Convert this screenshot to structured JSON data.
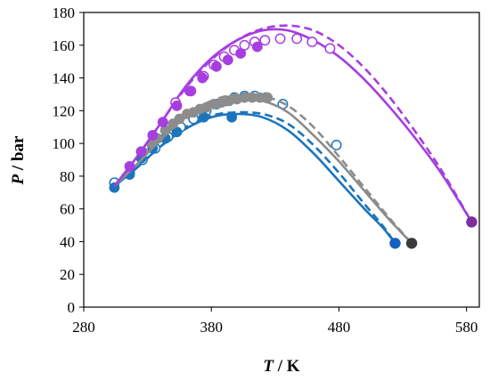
{
  "chart_data": {
    "type": "scatter",
    "title": "",
    "xlabel": {
      "symbol": "T",
      "unit": " / K"
    },
    "ylabel": {
      "symbol": "P",
      "unit": " / bar"
    },
    "xlim": [
      280,
      590
    ],
    "ylim": [
      0,
      180
    ],
    "x_ticks": [
      "280",
      "380",
      "480",
      "580"
    ],
    "x_tick_values": [
      280,
      380,
      480,
      580
    ],
    "y_ticks": [
      "0",
      "20",
      "40",
      "60",
      "80",
      "100",
      "120",
      "140",
      "160",
      "180"
    ],
    "y_tick_values": [
      0,
      20,
      40,
      60,
      80,
      100,
      120,
      140,
      160,
      180
    ],
    "grid": false,
    "legend": "none",
    "series": [
      {
        "color": "#1b75bc",
        "critical_point": [
          524,
          39
        ],
        "critical_color": "#1560c0",
        "filled": [
          [
            304,
            73
          ],
          [
            316,
            81
          ],
          [
            325,
            91
          ],
          [
            334,
            97
          ],
          [
            344,
            103
          ],
          [
            353,
            107
          ],
          [
            374,
            116
          ],
          [
            396,
            116
          ]
        ],
        "open": [
          [
            304,
            76
          ],
          [
            316,
            82
          ],
          [
            326,
            90
          ],
          [
            336,
            97
          ],
          [
            346,
            104
          ],
          [
            356,
            110
          ],
          [
            366,
            115
          ],
          [
            376,
            120
          ],
          [
            384,
            124
          ],
          [
            392,
            126
          ],
          [
            398,
            128
          ],
          [
            406,
            129
          ],
          [
            414,
            129
          ],
          [
            423,
            128
          ],
          [
            436,
            124
          ],
          [
            478,
            99
          ]
        ],
        "solid_line": [
          [
            304,
            74
          ],
          [
            320,
            84
          ],
          [
            340,
            98
          ],
          [
            360,
            109
          ],
          [
            380,
            116
          ],
          [
            400,
            118
          ],
          [
            420,
            116
          ],
          [
            440,
            108
          ],
          [
            460,
            94
          ],
          [
            480,
            77
          ],
          [
            500,
            60
          ],
          [
            515,
            48
          ],
          [
            524,
            39
          ]
        ],
        "dashed_line": [
          [
            304,
            74
          ],
          [
            320,
            84
          ],
          [
            340,
            98
          ],
          [
            360,
            110
          ],
          [
            380,
            117
          ],
          [
            400,
            119
          ],
          [
            420,
            118
          ],
          [
            440,
            112
          ],
          [
            460,
            99
          ],
          [
            480,
            82
          ],
          [
            500,
            63
          ],
          [
            515,
            49
          ],
          [
            524,
            39
          ]
        ]
      },
      {
        "color": "#8c8c8c",
        "critical_point": [
          537,
          39
        ],
        "critical_color": "#3a3a3a",
        "filled": [
          [
            326,
            95
          ],
          [
            333,
            100
          ],
          [
            338,
            103
          ],
          [
            344,
            108
          ],
          [
            350,
            112
          ],
          [
            355,
            115
          ],
          [
            361,
            118
          ],
          [
            366,
            119
          ],
          [
            371,
            121
          ],
          [
            376,
            122
          ],
          [
            382,
            124
          ],
          [
            388,
            125
          ],
          [
            394,
            126
          ],
          [
            400,
            127
          ],
          [
            406,
            128
          ],
          [
            412,
            128
          ],
          [
            418,
            128
          ],
          [
            424,
            128
          ]
        ],
        "open": [],
        "solid_line": [
          [
            304,
            74
          ],
          [
            320,
            86
          ],
          [
            340,
            102
          ],
          [
            360,
            116
          ],
          [
            380,
            124
          ],
          [
            400,
            127
          ],
          [
            420,
            126
          ],
          [
            440,
            119
          ],
          [
            460,
            105
          ],
          [
            480,
            89
          ],
          [
            500,
            71
          ],
          [
            520,
            53
          ],
          [
            537,
            39
          ]
        ],
        "dashed_line": [
          [
            304,
            74
          ],
          [
            320,
            86
          ],
          [
            340,
            102
          ],
          [
            360,
            117
          ],
          [
            380,
            126
          ],
          [
            400,
            130
          ],
          [
            420,
            129
          ],
          [
            440,
            123
          ],
          [
            460,
            110
          ],
          [
            480,
            92
          ],
          [
            500,
            73
          ],
          [
            520,
            54
          ],
          [
            537,
            39
          ]
        ]
      },
      {
        "color": "#a63ee0",
        "critical_point": [
          584,
          52
        ],
        "critical_color": "#7d2fa0",
        "filled": [
          [
            316,
            86
          ],
          [
            325,
            95
          ],
          [
            334,
            105
          ],
          [
            342,
            113
          ],
          [
            353,
            123
          ],
          [
            363,
            132
          ],
          [
            373,
            140
          ],
          [
            384,
            147
          ],
          [
            393,
            151
          ],
          [
            403,
            155
          ],
          [
            416,
            159
          ]
        ],
        "open": [
          [
            352,
            125
          ],
          [
            364,
            132
          ],
          [
            374,
            141
          ],
          [
            382,
            148
          ],
          [
            390,
            153
          ],
          [
            398,
            157
          ],
          [
            406,
            160
          ],
          [
            414,
            162
          ],
          [
            422,
            163
          ],
          [
            434,
            164
          ],
          [
            447,
            164
          ],
          [
            459,
            162
          ],
          [
            473,
            158
          ]
        ],
        "solid_line": [
          [
            304,
            74
          ],
          [
            320,
            90
          ],
          [
            340,
            112
          ],
          [
            360,
            135
          ],
          [
            380,
            152
          ],
          [
            400,
            163
          ],
          [
            420,
            169
          ],
          [
            440,
            169
          ],
          [
            460,
            163
          ],
          [
            480,
            153
          ],
          [
            500,
            139
          ],
          [
            520,
            122
          ],
          [
            540,
            103
          ],
          [
            560,
            82
          ],
          [
            584,
            52
          ]
        ],
        "dashed_line": [
          [
            304,
            74
          ],
          [
            320,
            90
          ],
          [
            340,
            112
          ],
          [
            360,
            134
          ],
          [
            380,
            151
          ],
          [
            400,
            163
          ],
          [
            420,
            170
          ],
          [
            440,
            172
          ],
          [
            460,
            169
          ],
          [
            480,
            160
          ],
          [
            500,
            146
          ],
          [
            520,
            128
          ],
          [
            540,
            107
          ],
          [
            560,
            84
          ],
          [
            584,
            52
          ]
        ]
      }
    ]
  }
}
